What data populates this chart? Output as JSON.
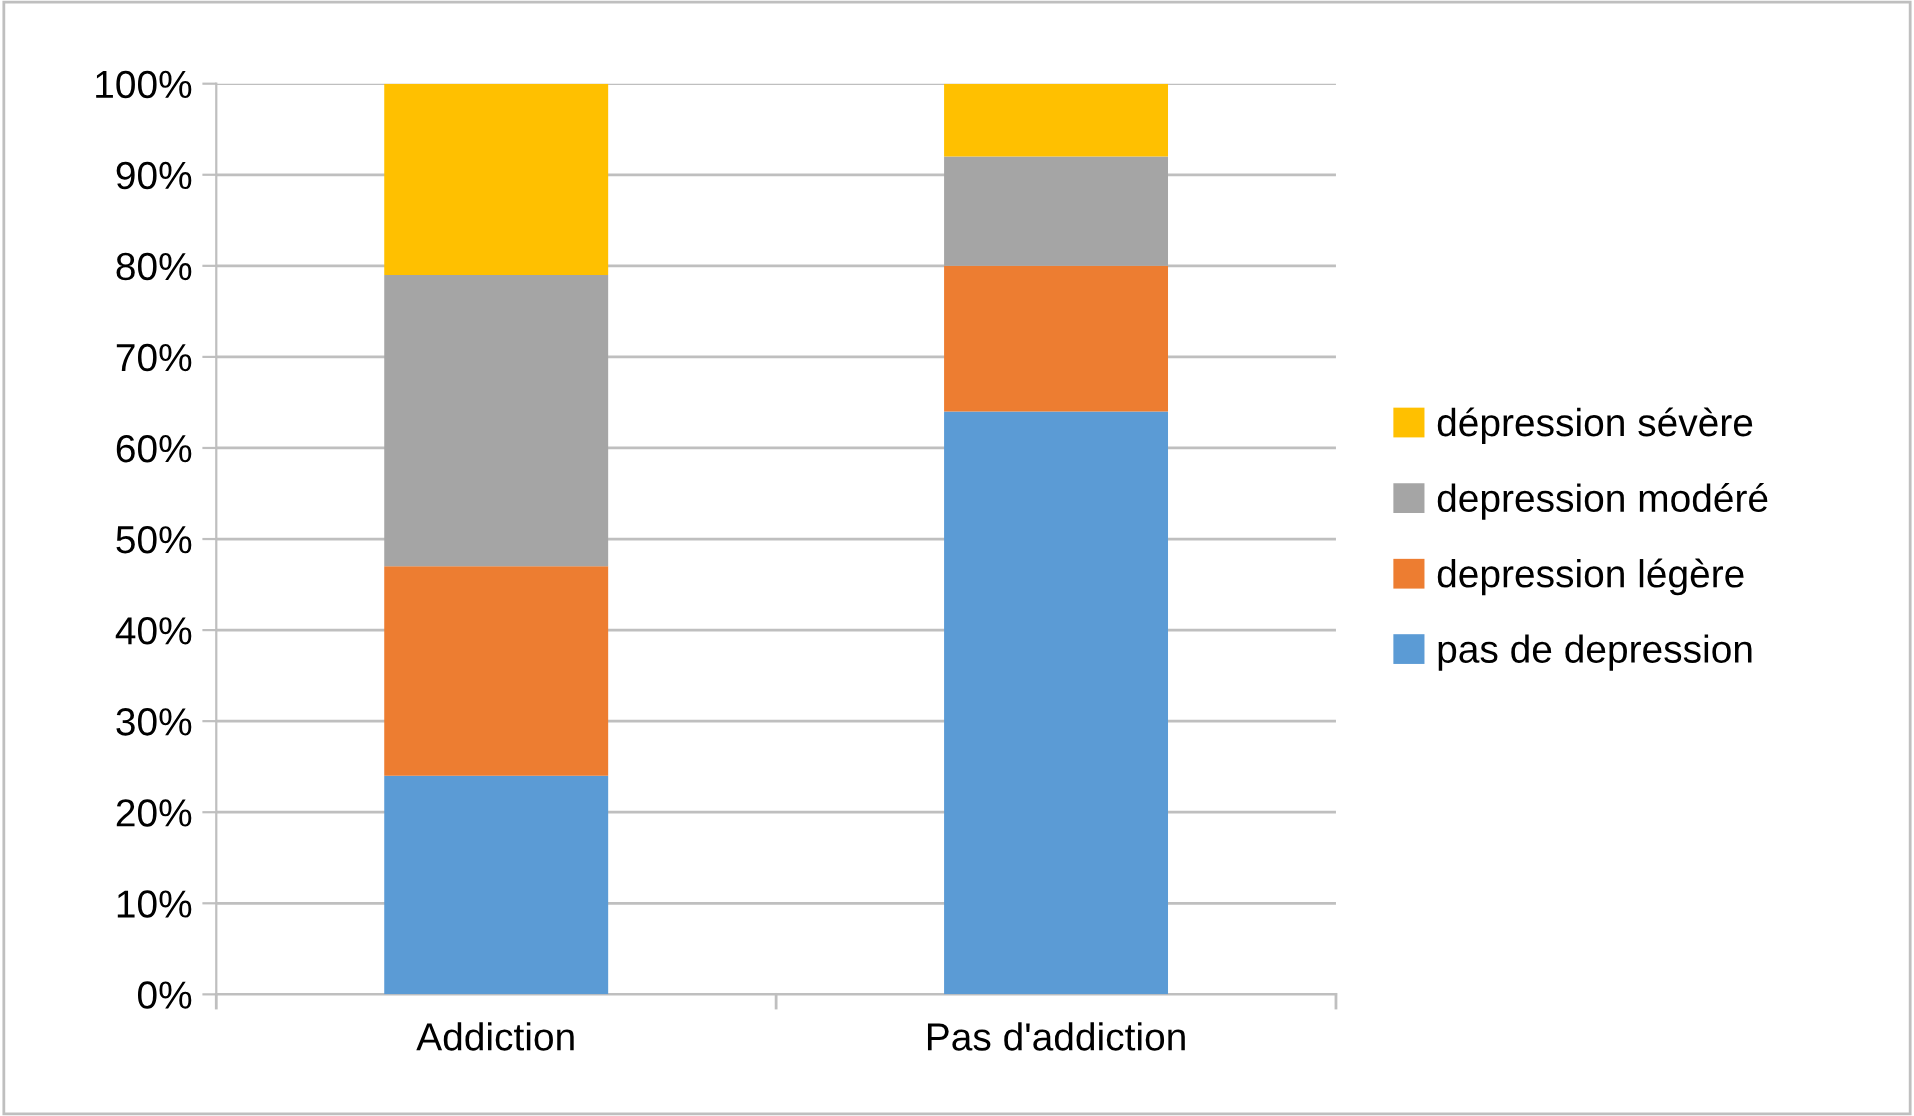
{
  "chart_data": {
    "type": "bar",
    "stacked": true,
    "categories": [
      "Addiction",
      "Pas d'addiction"
    ],
    "series": [
      {
        "name": "pas de depression",
        "color": "#5b9bd5",
        "values": [
          24,
          64
        ]
      },
      {
        "name": "depression légère",
        "color": "#ed7d31",
        "values": [
          23,
          16
        ]
      },
      {
        "name": "depression modéré",
        "color": "#a5a5a5",
        "values": [
          32,
          12
        ]
      },
      {
        "name": "dépression sévère",
        "color": "#ffc000",
        "values": [
          21,
          8
        ]
      }
    ],
    "ylim": [
      0,
      100
    ],
    "yticks": [
      {
        "value": 0,
        "label": "0%"
      },
      {
        "value": 10,
        "label": "10%"
      },
      {
        "value": 20,
        "label": "20%"
      },
      {
        "value": 30,
        "label": "30%"
      },
      {
        "value": 40,
        "label": "40%"
      },
      {
        "value": 50,
        "label": "50%"
      },
      {
        "value": 60,
        "label": "60%"
      },
      {
        "value": 70,
        "label": "70%"
      },
      {
        "value": 80,
        "label": "80%"
      },
      {
        "value": 90,
        "label": "90%"
      },
      {
        "value": 100,
        "label": "100%"
      }
    ],
    "grid": "y",
    "legend": "right"
  }
}
